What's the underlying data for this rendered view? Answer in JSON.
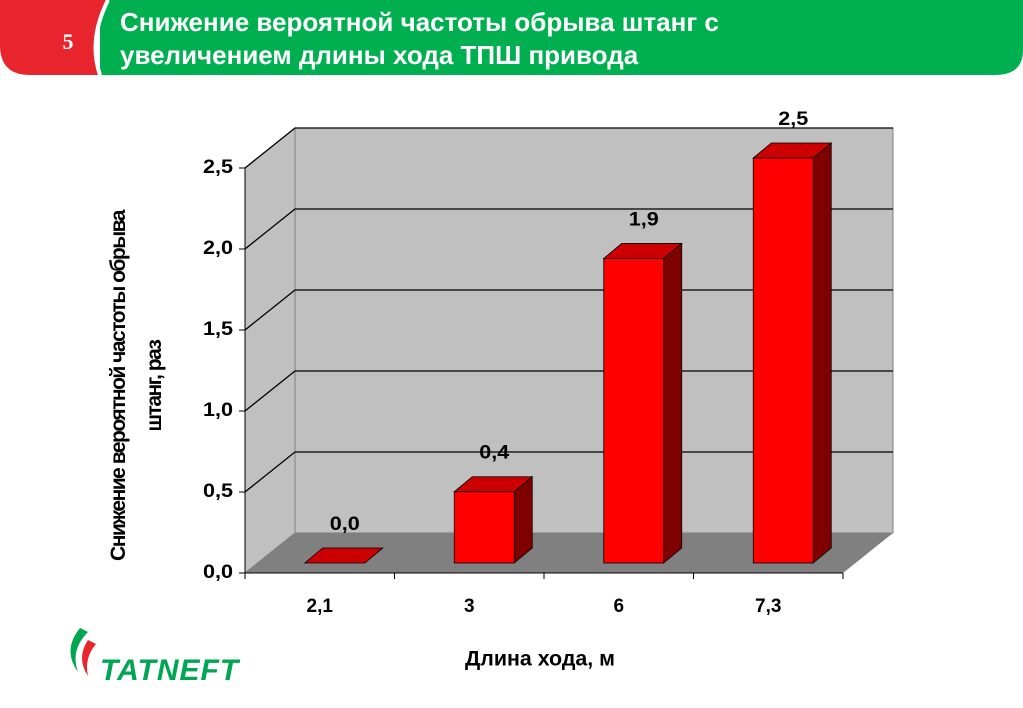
{
  "slide_number": "5",
  "logo": "TATNEFT",
  "chart_data": {
    "type": "bar3d",
    "title": "Снижение вероятной частоты обрыва штанг с увеличением длины хода ТПШ привода",
    "x_label": "Длина хода, м",
    "y_label": "Снижение вероятной частоты обрыва штанг, раз",
    "categories": [
      "2,1",
      "3",
      "6",
      "7,3"
    ],
    "values": [
      0.0,
      0.44,
      1.88,
      2.5
    ],
    "value_labels": [
      "0,0",
      "0,4",
      "1,9",
      "2,5"
    ],
    "color": "#ff0000",
    "ylim": [
      0,
      2.5
    ],
    "yticks": [
      {
        "value": 0,
        "label": "0,0"
      },
      {
        "value": 0.5,
        "label": "0,5"
      },
      {
        "value": 1,
        "label": "1,0"
      },
      {
        "value": 1.5,
        "label": "1,5"
      },
      {
        "value": 2,
        "label": "2,0"
      },
      {
        "value": 2.5,
        "label": "2,5"
      }
    ],
    "grid": true
  }
}
